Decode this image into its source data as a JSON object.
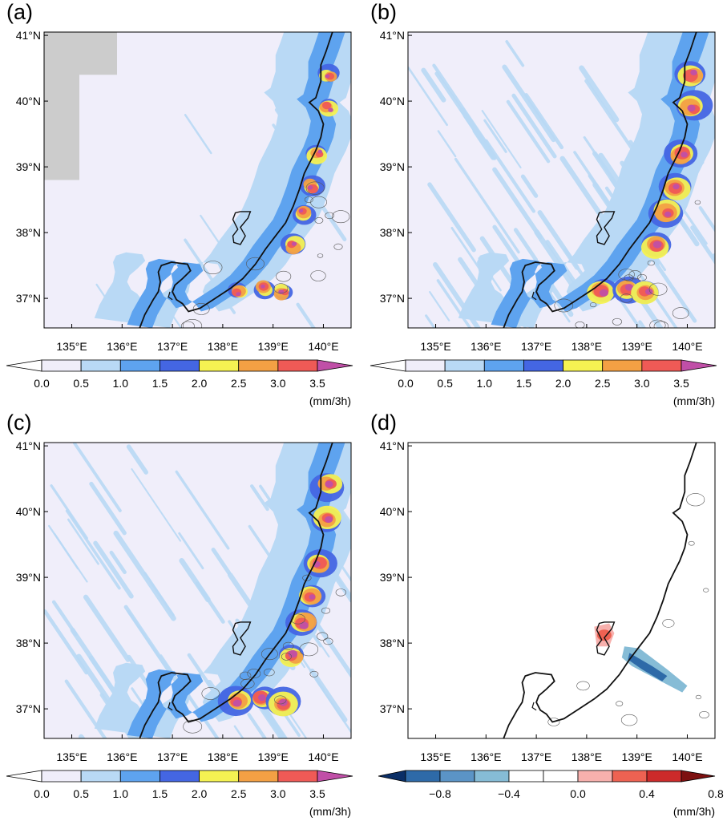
{
  "panels": [
    {
      "id": "a",
      "label": "(a)",
      "type": "precip",
      "masked": true
    },
    {
      "id": "b",
      "label": "(b)",
      "type": "precip",
      "masked": false
    },
    {
      "id": "c",
      "label": "(c)",
      "type": "precip",
      "masked": false
    },
    {
      "id": "d",
      "label": "(d)",
      "type": "diff",
      "masked": false
    }
  ],
  "axes": {
    "lat_labels": [
      "41°N",
      "40°N",
      "39°N",
      "38°N",
      "37°N"
    ],
    "lat_values": [
      41,
      40,
      39,
      38,
      37
    ],
    "lon_labels": [
      "135°E",
      "136°E",
      "137°E",
      "138°E",
      "139°E",
      "140°E"
    ],
    "lon_values": [
      135,
      136,
      137,
      138,
      139,
      140
    ],
    "lon_range": [
      134.45,
      140.55
    ],
    "lat_range": [
      36.55,
      41.05
    ]
  },
  "colorbar_precip": {
    "colors": [
      "#f0eefa",
      "#b9d9f5",
      "#5ea3ef",
      "#4466e3",
      "#f5f252",
      "#f3a044",
      "#ef5a56",
      "#c04fa7"
    ],
    "tick_labels": [
      "0.0",
      "0.5",
      "1.0",
      "1.5",
      "2.0",
      "2.5",
      "3.0",
      "3.5"
    ],
    "unit": "(mm/3h)"
  },
  "colorbar_diff": {
    "colors": [
      "#0a2e66",
      "#2e6aa8",
      "#5b94c6",
      "#86bcd6",
      "#ffffff",
      "#ffffff",
      "#f7b0ad",
      "#ee6252",
      "#cc2a2a",
      "#7d1010"
    ],
    "tick_labels": [
      "−0.8",
      "−0.4",
      "0.0",
      "0.4",
      "0.8"
    ],
    "unit": "(mm/3h)"
  }
}
